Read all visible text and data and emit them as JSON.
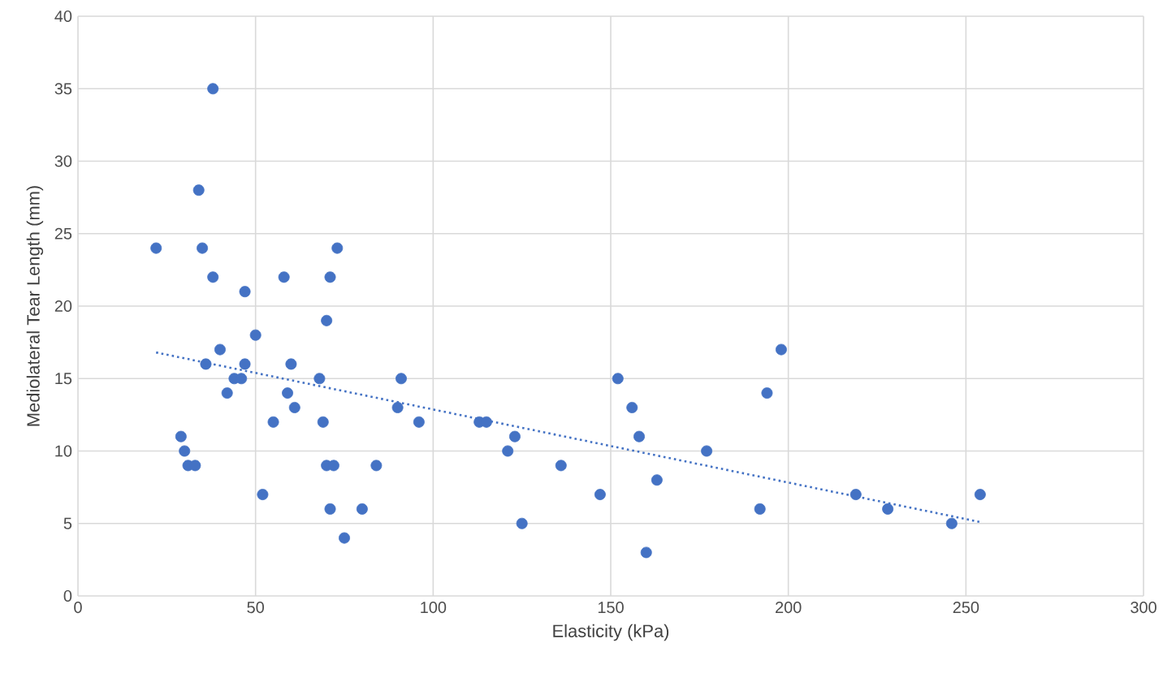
{
  "chart_data": {
    "type": "scatter",
    "xlabel": "Elasticity (kPa)",
    "ylabel": "Mediolateral Tear Length (mm)",
    "xlim": [
      0,
      300
    ],
    "ylim": [
      0,
      40
    ],
    "xticks": [
      0,
      50,
      100,
      150,
      200,
      250,
      300
    ],
    "yticks": [
      0,
      5,
      10,
      15,
      20,
      25,
      30,
      35,
      40
    ],
    "grid": true,
    "marker": "circle",
    "series": [
      {
        "color": "#4472c4",
        "x": [
          22,
          38,
          34,
          35,
          38,
          47,
          73,
          58,
          71,
          70,
          50,
          40,
          36,
          47,
          60,
          42,
          44,
          46,
          55,
          59,
          61,
          68,
          69,
          70,
          71,
          72,
          75,
          52,
          29,
          30,
          31,
          33,
          80,
          84,
          90,
          91,
          96,
          113,
          115,
          121,
          123,
          125,
          136,
          147,
          152,
          156,
          158,
          160,
          163,
          177,
          192,
          194,
          198,
          219,
          228,
          246,
          254
        ],
        "values": [
          24,
          35,
          28,
          24,
          22,
          21,
          24,
          22,
          22,
          19,
          18,
          17,
          16,
          16,
          16,
          14,
          15,
          15,
          12,
          14,
          13,
          15,
          12,
          9,
          6,
          9,
          4,
          7,
          11,
          10,
          9,
          9,
          6,
          9,
          13,
          15,
          12,
          12,
          12,
          10,
          11,
          5,
          9,
          7,
          15,
          13,
          11,
          3,
          8,
          10,
          6,
          14,
          17,
          7,
          6,
          5,
          7
        ]
      },
      {
        "type": "line",
        "color": "#4472c4",
        "line_style": "dotted",
        "marker": "none",
        "x": [
          22,
          254
        ],
        "values": [
          16.8,
          5.1
        ]
      }
    ]
  }
}
